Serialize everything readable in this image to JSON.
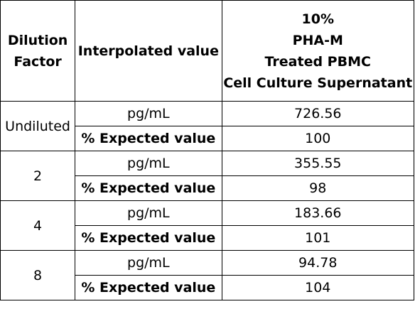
{
  "header": {
    "dilution_factor": [
      "Dilution",
      "Factor"
    ],
    "interpolated_value": "Interpolated value",
    "sample": [
      "10%",
      "PHA-M",
      "Treated PBMC",
      "Cell Culture Supernatant"
    ]
  },
  "rows": [
    {
      "dilution": "Undiluted",
      "unit_label": "pg/mL",
      "unit_value": "726.56",
      "pct_label": "% Expected value",
      "pct_value": "100"
    },
    {
      "dilution": "2",
      "unit_label": "pg/mL",
      "unit_value": "355.55",
      "pct_label": "% Expected value",
      "pct_value": "98"
    },
    {
      "dilution": "4",
      "unit_label": "pg/mL",
      "unit_value": "183.66",
      "pct_label": "% Expected value",
      "pct_value": "101"
    },
    {
      "dilution": "8",
      "unit_label": "pg/mL",
      "unit_value": "94.78",
      "pct_label": "% Expected value",
      "pct_value": "104"
    }
  ]
}
